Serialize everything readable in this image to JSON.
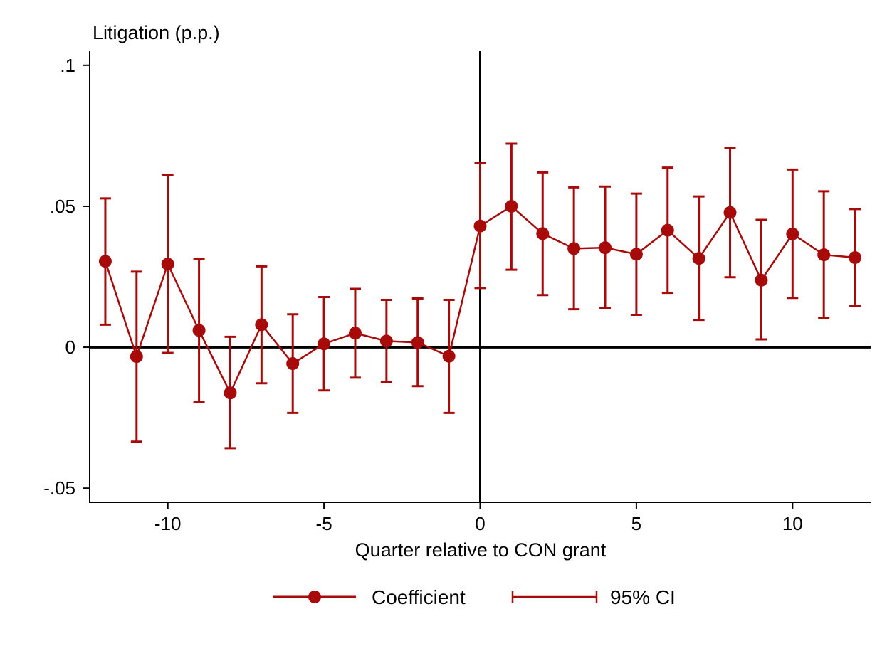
{
  "chart_data": {
    "type": "line",
    "title": "",
    "ylabel": "Litigation (p.p.)",
    "xlabel": "Quarter relative to CON grant",
    "xlim": [
      -12.5,
      12.5
    ],
    "ylim": [
      -0.055,
      0.105
    ],
    "xticks": [
      -10,
      -5,
      0,
      5,
      10
    ],
    "xtick_labels": [
      "-10",
      "-5",
      "0",
      "5",
      "10"
    ],
    "yticks": [
      -0.05,
      0,
      0.05,
      0.1
    ],
    "ytick_labels": [
      "-.05",
      "0",
      ".05",
      ".1"
    ],
    "reference_lines": {
      "x": 0,
      "y": 0
    },
    "grid": false,
    "legend_position": "bottom-center",
    "color": "#a80a0a",
    "series": [
      {
        "name": "Coefficient",
        "x": [
          -12,
          -11,
          -10,
          -9,
          -8,
          -7,
          -6,
          -5,
          -4,
          -3,
          -2,
          -1,
          0,
          1,
          2,
          3,
          4,
          5,
          6,
          7,
          8,
          9,
          10,
          11,
          12
        ],
        "values": [
          0.0305,
          -0.0033,
          0.0295,
          0.006,
          -0.0162,
          0.008,
          -0.0058,
          0.0012,
          0.005,
          0.0022,
          0.0017,
          -0.0032,
          0.043,
          0.05,
          0.0403,
          0.035,
          0.0353,
          0.033,
          0.0415,
          0.0315,
          0.0478,
          0.0238,
          0.0402,
          0.0328,
          0.0318
        ]
      },
      {
        "name": "95% CI",
        "x": [
          -12,
          -11,
          -10,
          -9,
          -8,
          -7,
          -6,
          -5,
          -4,
          -3,
          -2,
          -1,
          0,
          1,
          2,
          3,
          4,
          5,
          6,
          7,
          8,
          9,
          10,
          11,
          12
        ],
        "lower": [
          0.008,
          -0.0335,
          -0.002,
          -0.0195,
          -0.0358,
          -0.0128,
          -0.0233,
          -0.0153,
          -0.0108,
          -0.0123,
          -0.0138,
          -0.0233,
          0.021,
          0.0275,
          0.0185,
          0.0135,
          0.014,
          0.0115,
          0.0193,
          0.0097,
          0.0248,
          0.0028,
          0.0175,
          0.0103,
          0.0147
        ],
        "upper": [
          0.0528,
          0.0268,
          0.0612,
          0.0312,
          0.0037,
          0.0287,
          0.0117,
          0.0178,
          0.0207,
          0.0168,
          0.0173,
          0.0168,
          0.0653,
          0.0722,
          0.062,
          0.0567,
          0.057,
          0.0545,
          0.0637,
          0.0535,
          0.0707,
          0.0452,
          0.063,
          0.0553,
          0.049
        ]
      }
    ]
  }
}
